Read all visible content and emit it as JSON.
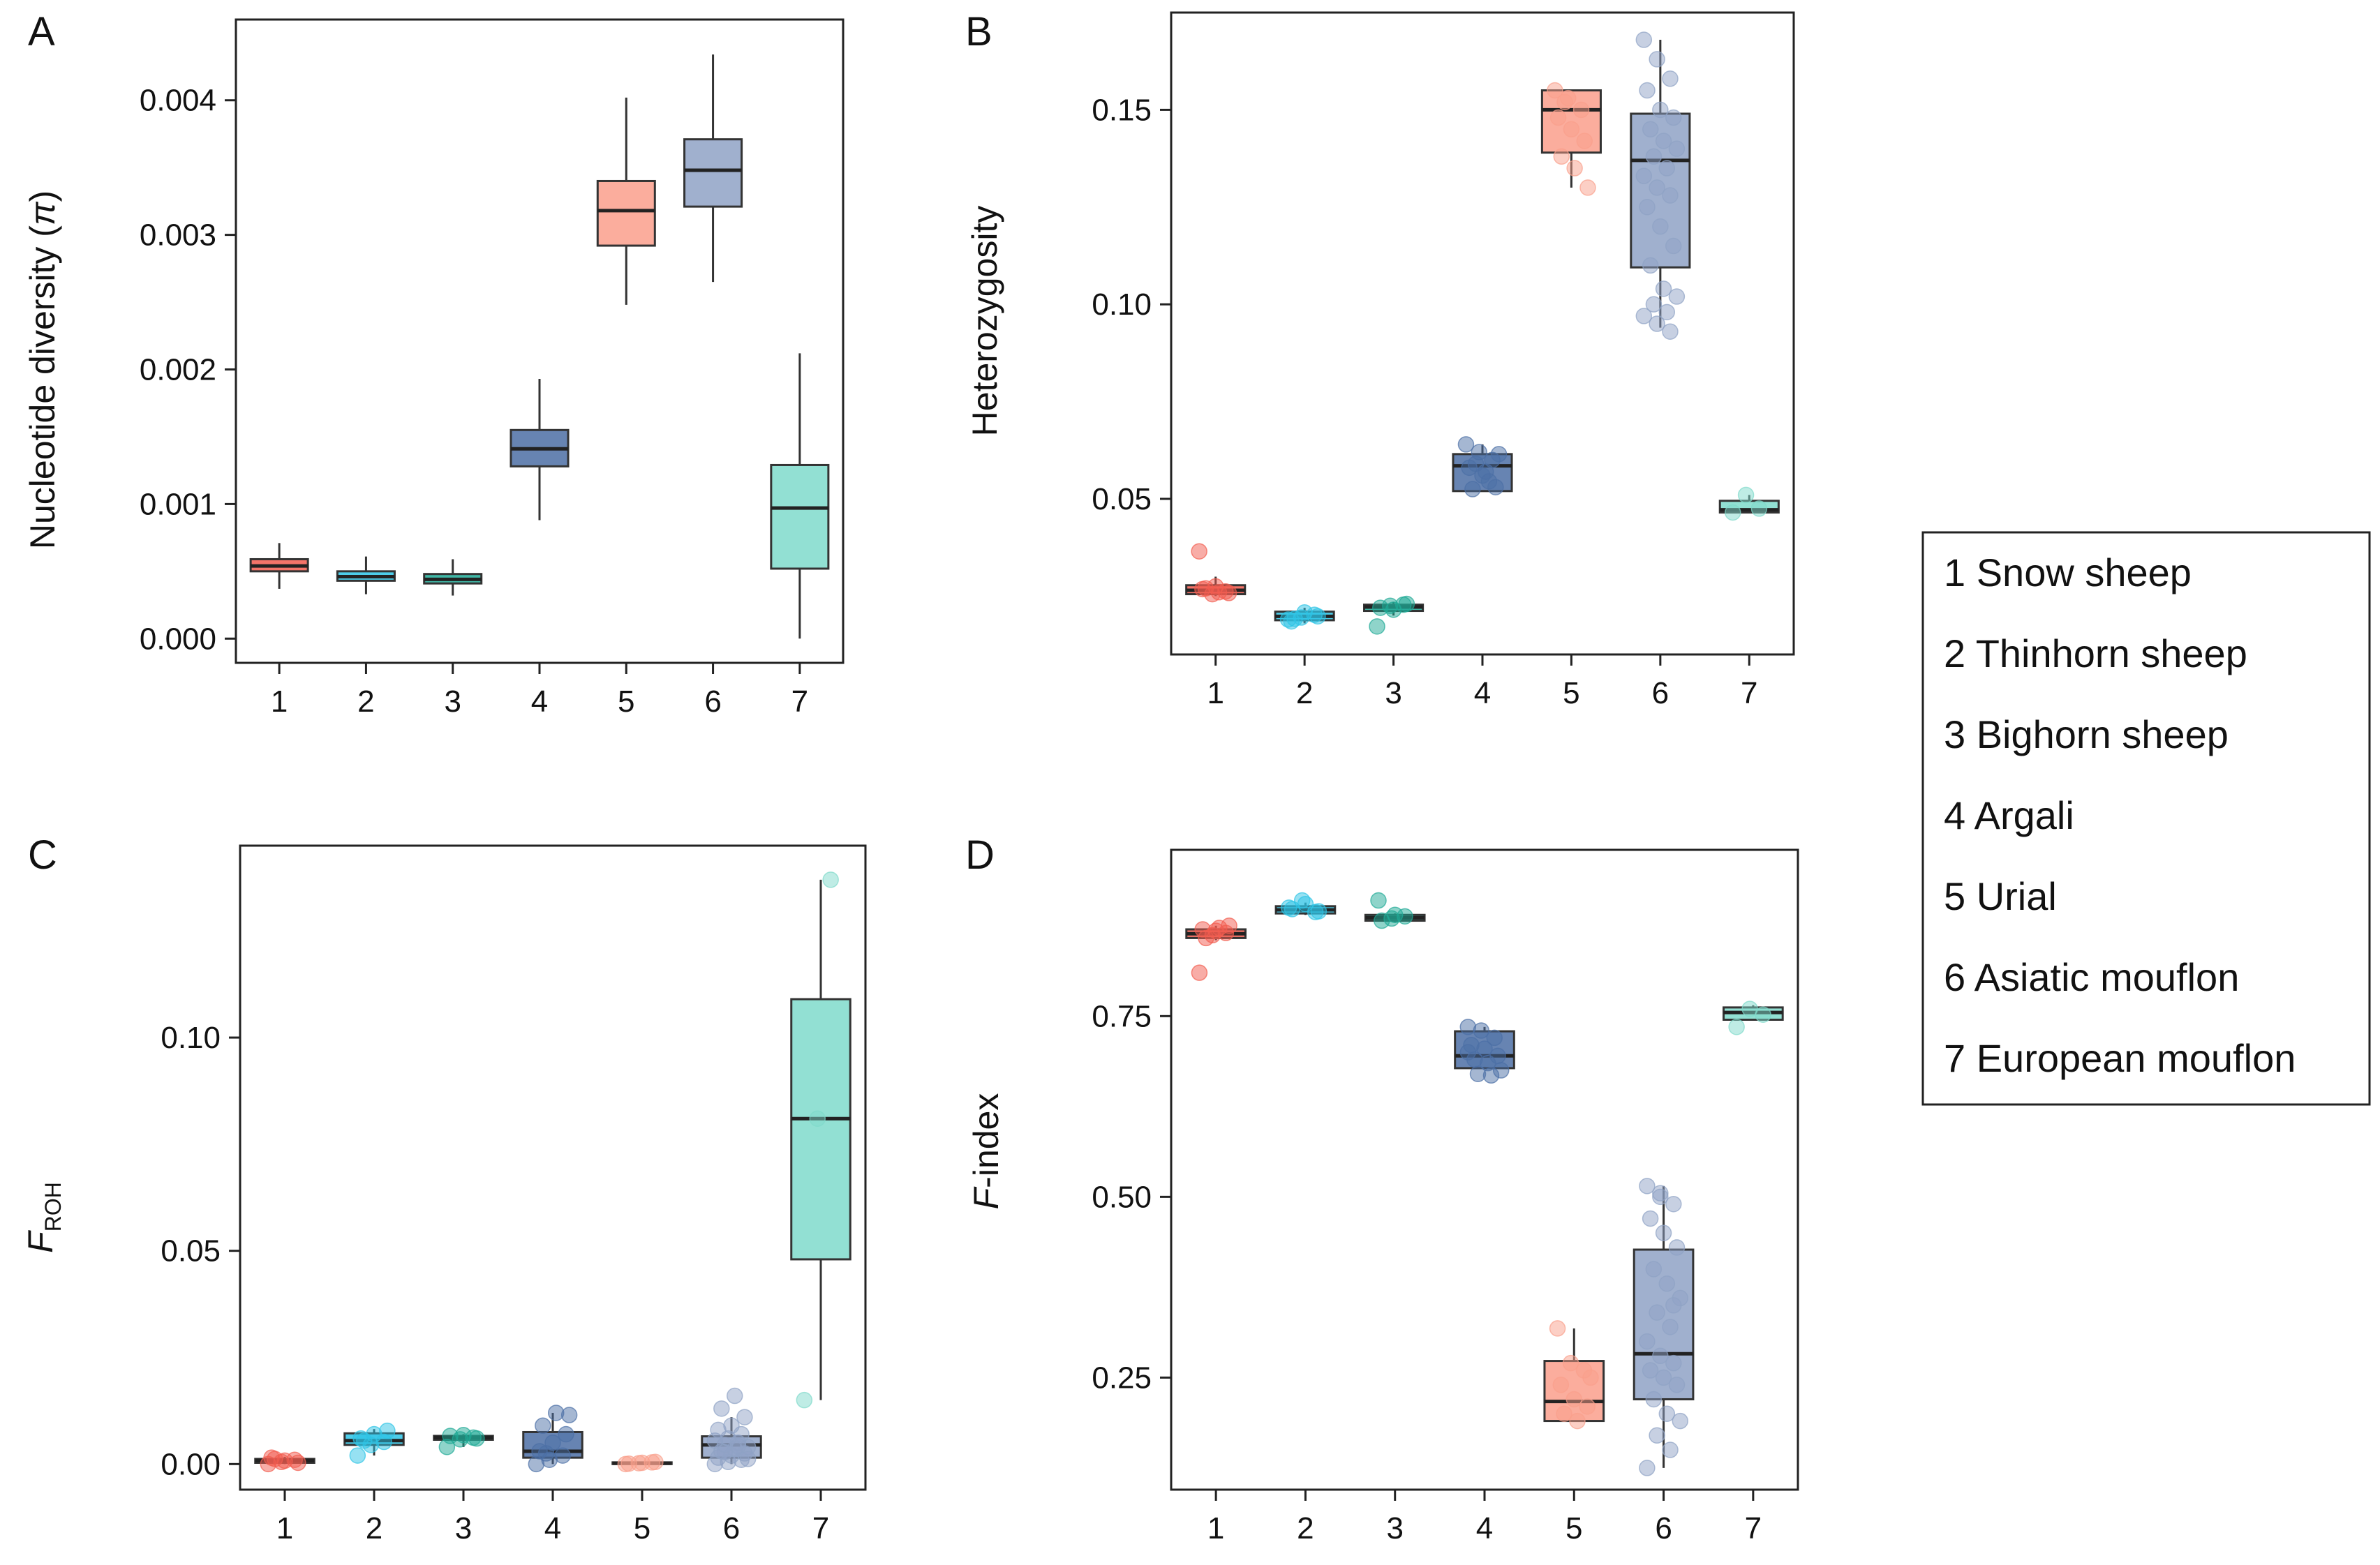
{
  "colors": {
    "snow_sheep": "#f25c4f",
    "thinhorn_sheep": "#2ec4e6",
    "bighorn_sheep": "#1faa96",
    "argali": "#4c6fa5",
    "urial": "#fa9f8c",
    "asiatic_mouflon": "#8fa2c5",
    "european_mouflon": "#7fdacb"
  },
  "legend": {
    "items": [
      "1 Snow sheep",
      "2 Thinhorn sheep",
      "3 Bighorn sheep",
      "4 Argali",
      "5 Urial",
      "6 Asiatic mouflon",
      "7 European mouflon"
    ]
  },
  "chart_data": [
    {
      "panel": "A",
      "type": "box",
      "categories": [
        "1",
        "2",
        "3",
        "4",
        "5",
        "6",
        "7"
      ],
      "ylabel_main": "Nucleotide diversity (",
      "ylabel_symbol": "π",
      "ylabel_end": ")",
      "ylim": [
        -0.00018,
        0.0046
      ],
      "yticks": [
        0.0,
        0.001,
        0.002,
        0.003,
        0.004
      ],
      "ytick_labels": [
        "0.000",
        "0.001",
        "0.002",
        "0.003",
        "0.004"
      ],
      "boxes": [
        {
          "cat": "1",
          "wlo": 0.00037,
          "q1": 0.0005,
          "med": 0.00054,
          "q3": 0.00059,
          "whi": 0.00071
        },
        {
          "cat": "2",
          "wlo": 0.00033,
          "q1": 0.00043,
          "med": 0.00046,
          "q3": 0.0005,
          "whi": 0.00061
        },
        {
          "cat": "3",
          "wlo": 0.00032,
          "q1": 0.00041,
          "med": 0.00044,
          "q3": 0.00048,
          "whi": 0.00059
        },
        {
          "cat": "4",
          "wlo": 0.00088,
          "q1": 0.00128,
          "med": 0.00141,
          "q3": 0.00155,
          "whi": 0.00193
        },
        {
          "cat": "5",
          "wlo": 0.00248,
          "q1": 0.00292,
          "med": 0.00318,
          "q3": 0.0034,
          "whi": 0.00402
        },
        {
          "cat": "6",
          "wlo": 0.00265,
          "q1": 0.00321,
          "med": 0.00348,
          "q3": 0.00371,
          "whi": 0.00434
        },
        {
          "cat": "7",
          "wlo": 0.0,
          "q1": 0.00052,
          "med": 0.00097,
          "q3": 0.00129,
          "whi": 0.00212
        }
      ],
      "points": []
    },
    {
      "panel": "B",
      "type": "box",
      "categories": [
        "1",
        "2",
        "3",
        "4",
        "5",
        "6",
        "7"
      ],
      "ylabel": "Heterozygosity",
      "ylim": [
        0.01,
        0.175
      ],
      "yticks": [
        0.05,
        0.1,
        0.15
      ],
      "ytick_labels": [
        "0.05",
        "0.10",
        "0.15"
      ],
      "boxes": [
        {
          "cat": "1",
          "wlo": 0.025,
          "q1": 0.0255,
          "med": 0.0265,
          "q3": 0.0278,
          "whi": 0.03
        },
        {
          "cat": "2",
          "wlo": 0.018,
          "q1": 0.0188,
          "med": 0.0198,
          "q3": 0.021,
          "whi": 0.022
        },
        {
          "cat": "3",
          "wlo": 0.02,
          "q1": 0.0212,
          "med": 0.0222,
          "q3": 0.0228,
          "whi": 0.0235
        },
        {
          "cat": "4",
          "wlo": 0.052,
          "q1": 0.052,
          "med": 0.0585,
          "q3": 0.0615,
          "whi": 0.064
        },
        {
          "cat": "5",
          "wlo": 0.13,
          "q1": 0.139,
          "med": 0.15,
          "q3": 0.155,
          "whi": 0.155
        },
        {
          "cat": "6",
          "wlo": 0.094,
          "q1": 0.1095,
          "med": 0.137,
          "q3": 0.149,
          "whi": 0.168
        },
        {
          "cat": "7",
          "wlo": 0.0465,
          "q1": 0.0465,
          "med": 0.0472,
          "q3": 0.0495,
          "whi": 0.051
        }
      ],
      "points": [
        {
          "cat": "1",
          "vals": [
            0.0365,
            0.0255,
            0.0262,
            0.0268,
            0.0275,
            0.0258,
            0.027,
            0.026
          ]
        },
        {
          "cat": "2",
          "vals": [
            0.019,
            0.0195,
            0.0202,
            0.0185,
            0.0208,
            0.0198,
            0.0192
          ]
        },
        {
          "cat": "3",
          "vals": [
            0.0172,
            0.0225,
            0.0228,
            0.022,
            0.0215,
            0.023
          ]
        },
        {
          "cat": "4",
          "vals": [
            0.064,
            0.062,
            0.06,
            0.058,
            0.056,
            0.053,
            0.0525,
            0.057,
            0.0615,
            0.059,
            0.0545
          ]
        },
        {
          "cat": "5",
          "vals": [
            0.155,
            0.153,
            0.15,
            0.148,
            0.145,
            0.142,
            0.138,
            0.135,
            0.13,
            0.152
          ]
        },
        {
          "cat": "6",
          "vals": [
            0.168,
            0.163,
            0.158,
            0.155,
            0.15,
            0.148,
            0.145,
            0.142,
            0.14,
            0.138,
            0.135,
            0.133,
            0.13,
            0.128,
            0.125,
            0.12,
            0.115,
            0.11,
            0.104,
            0.102,
            0.1,
            0.098,
            0.097,
            0.095,
            0.093
          ]
        },
        {
          "cat": "7",
          "vals": [
            0.0465,
            0.051,
            0.0475
          ]
        }
      ]
    },
    {
      "panel": "C",
      "type": "box",
      "categories": [
        "1",
        "2",
        "3",
        "4",
        "5",
        "6",
        "7"
      ],
      "ylabel_main": "F",
      "ylabel_sub": "ROH",
      "ylim": [
        -0.006,
        0.145
      ],
      "yticks": [
        0.0,
        0.05,
        0.1
      ],
      "ytick_labels": [
        "0.00",
        "0.05",
        "0.10"
      ],
      "boxes": [
        {
          "cat": "1",
          "wlo": 0.0,
          "q1": 0.0003,
          "med": 0.0008,
          "q3": 0.0012,
          "whi": 0.0017
        },
        {
          "cat": "2",
          "wlo": 0.002,
          "q1": 0.0045,
          "med": 0.0055,
          "q3": 0.0072,
          "whi": 0.0082
        },
        {
          "cat": "3",
          "wlo": 0.004,
          "q1": 0.0057,
          "med": 0.0062,
          "q3": 0.0066,
          "whi": 0.007
        },
        {
          "cat": "4",
          "wlo": 0.0,
          "q1": 0.0015,
          "med": 0.003,
          "q3": 0.0075,
          "whi": 0.012
        },
        {
          "cat": "5",
          "wlo": 0.0,
          "q1": 0.0,
          "med": 0.0002,
          "q3": 0.0004,
          "whi": 0.0006
        },
        {
          "cat": "6",
          "wlo": 0.0,
          "q1": 0.0015,
          "med": 0.0045,
          "q3": 0.0065,
          "whi": 0.011
        },
        {
          "cat": "7",
          "wlo": 0.015,
          "q1": 0.048,
          "med": 0.081,
          "q3": 0.109,
          "whi": 0.137
        }
      ],
      "points": [
        {
          "cat": "1",
          "vals": [
            0.0,
            0.0005,
            0.001,
            0.0015,
            0.0008,
            0.0003,
            0.0012
          ]
        },
        {
          "cat": "2",
          "vals": [
            0.002,
            0.0045,
            0.0052,
            0.006,
            0.007,
            0.0078,
            0.0055
          ]
        },
        {
          "cat": "3",
          "vals": [
            0.004,
            0.0058,
            0.0062,
            0.0066,
            0.0068,
            0.006
          ]
        },
        {
          "cat": "4",
          "vals": [
            0.0,
            0.001,
            0.002,
            0.003,
            0.005,
            0.007,
            0.009,
            0.012,
            0.0115,
            0.0025
          ]
        },
        {
          "cat": "5",
          "vals": [
            0.0,
            0.0002,
            0.0004,
            0.0001,
            0.0003,
            0.0005
          ]
        },
        {
          "cat": "6",
          "vals": [
            0.0,
            0.0005,
            0.001,
            0.0015,
            0.002,
            0.0025,
            0.003,
            0.0035,
            0.004,
            0.0045,
            0.005,
            0.0055,
            0.006,
            0.007,
            0.008,
            0.009,
            0.011,
            0.013,
            0.016,
            0.0012,
            0.0028,
            0.0042
          ]
        },
        {
          "cat": "7",
          "vals": [
            0.015,
            0.081,
            0.137
          ]
        }
      ]
    },
    {
      "panel": "D",
      "type": "box",
      "categories": [
        "1",
        "2",
        "3",
        "4",
        "5",
        "6",
        "7"
      ],
      "ylabel_main": "F",
      "ylabel_rest": "-index",
      "ylim": [
        0.095,
        0.98
      ],
      "yticks": [
        0.25,
        0.5,
        0.75
      ],
      "ytick_labels": [
        "0.25",
        "0.50",
        "0.75"
      ],
      "boxes": [
        {
          "cat": "1",
          "wlo": 0.855,
          "q1": 0.858,
          "med": 0.864,
          "q3": 0.87,
          "whi": 0.875
        },
        {
          "cat": "2",
          "wlo": 0.89,
          "q1": 0.892,
          "med": 0.897,
          "q3": 0.902,
          "whi": 0.907
        },
        {
          "cat": "3",
          "wlo": 0.88,
          "q1": 0.882,
          "med": 0.886,
          "q3": 0.89,
          "whi": 0.892
        },
        {
          "cat": "4",
          "wlo": 0.68,
          "q1": 0.678,
          "med": 0.695,
          "q3": 0.729,
          "whi": 0.735
        },
        {
          "cat": "5",
          "wlo": 0.19,
          "q1": 0.19,
          "med": 0.217,
          "q3": 0.273,
          "whi": 0.318
        },
        {
          "cat": "6",
          "wlo": 0.125,
          "q1": 0.22,
          "med": 0.283,
          "q3": 0.427,
          "whi": 0.515
        },
        {
          "cat": "7",
          "wlo": 0.745,
          "q1": 0.745,
          "med": 0.755,
          "q3": 0.762,
          "whi": 0.765
        }
      ],
      "points": [
        {
          "cat": "1",
          "vals": [
            0.81,
            0.862,
            0.865,
            0.87,
            0.868,
            0.875,
            0.858,
            0.872
          ]
        },
        {
          "cat": "2",
          "vals": [
            0.9,
            0.91,
            0.894,
            0.898,
            0.905,
            0.895
          ]
        },
        {
          "cat": "3",
          "vals": [
            0.91,
            0.885,
            0.888,
            0.882,
            0.89
          ]
        },
        {
          "cat": "4",
          "vals": [
            0.735,
            0.73,
            0.72,
            0.71,
            0.705,
            0.695,
            0.69,
            0.685,
            0.675,
            0.67,
            0.668,
            0.7
          ]
        },
        {
          "cat": "5",
          "vals": [
            0.318,
            0.27,
            0.26,
            0.24,
            0.22,
            0.21,
            0.2,
            0.19,
            0.25
          ]
        },
        {
          "cat": "6",
          "vals": [
            0.515,
            0.505,
            0.49,
            0.47,
            0.45,
            0.43,
            0.4,
            0.38,
            0.36,
            0.34,
            0.32,
            0.3,
            0.28,
            0.27,
            0.26,
            0.25,
            0.24,
            0.22,
            0.2,
            0.19,
            0.17,
            0.15,
            0.125,
            0.5,
            0.35
          ]
        },
        {
          "cat": "7",
          "vals": [
            0.735,
            0.76,
            0.752
          ]
        }
      ]
    }
  ]
}
